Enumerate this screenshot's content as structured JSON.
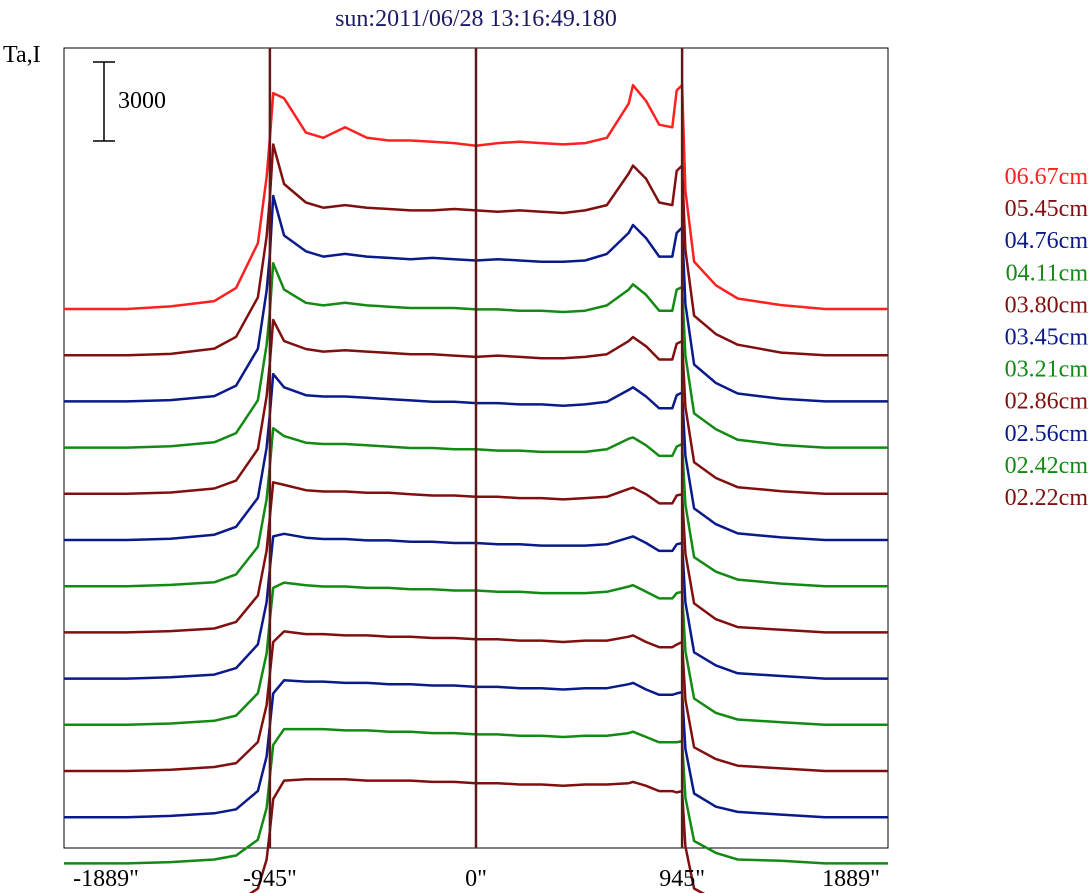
{
  "chart_data": {
    "type": "line",
    "title": "sun:2011/06/28 13:16:49.180",
    "ylabel": "Ta,I",
    "scale_bar_label": "3000",
    "x_tick_labels": [
      "-1889\"",
      "-945\"",
      "0\"",
      "945\"",
      "1889\""
    ],
    "x_ticks": [
      -1889,
      -945,
      0,
      945,
      1889
    ],
    "xlim": [
      -1889,
      1889
    ],
    "vertical_lines_at": [
      -945,
      0,
      945
    ],
    "grid": false,
    "legend_placement": "right",
    "x": [
      -1889,
      -1600,
      -1400,
      -1200,
      -1100,
      -1000,
      -960,
      -945,
      -930,
      -880,
      -780,
      -700,
      -600,
      -500,
      -400,
      -300,
      -200,
      -100,
      0,
      100,
      200,
      300,
      400,
      500,
      600,
      700,
      720,
      780,
      840,
      900,
      920,
      945,
      960,
      1000,
      1100,
      1200,
      1400,
      1600,
      1889
    ],
    "series": [
      {
        "name": "06.67cm",
        "color": "#ff2020",
        "label_order": 1,
        "values": [
          0,
          0,
          100,
          300,
          800,
          2500,
          5000,
          6500,
          8200,
          8000,
          6700,
          6500,
          6900,
          6500,
          6400,
          6400,
          6350,
          6300,
          6200,
          6300,
          6350,
          6300,
          6250,
          6300,
          6500,
          7800,
          8500,
          7900,
          7000,
          6900,
          8300,
          8500,
          4500,
          1800,
          900,
          400,
          150,
          0,
          0
        ]
      },
      {
        "name": "05.45cm",
        "color": "#801010",
        "label_order": 2,
        "values": [
          0,
          0,
          50,
          250,
          700,
          2200,
          4500,
          6000,
          8000,
          6500,
          5800,
          5600,
          5700,
          5600,
          5550,
          5500,
          5500,
          5550,
          5500,
          5450,
          5500,
          5450,
          5400,
          5500,
          5700,
          6900,
          7200,
          6700,
          5800,
          5700,
          7000,
          7200,
          4000,
          1500,
          800,
          400,
          100,
          0,
          0
        ]
      },
      {
        "name": "04.76cm",
        "color": "#0a1a8a",
        "label_order": 3,
        "values": [
          0,
          0,
          50,
          200,
          600,
          2000,
          4200,
          5600,
          7800,
          6300,
          5700,
          5500,
          5600,
          5500,
          5450,
          5400,
          5450,
          5400,
          5350,
          5400,
          5350,
          5300,
          5300,
          5350,
          5600,
          6400,
          6700,
          6200,
          5500,
          5500,
          6400,
          6600,
          3700,
          1400,
          700,
          300,
          100,
          0,
          0
        ]
      },
      {
        "name": "04.11cm",
        "color": "#138a13",
        "label_order": 4,
        "values": [
          0,
          0,
          50,
          200,
          550,
          1800,
          3900,
          5200,
          7000,
          6000,
          5500,
          5400,
          5500,
          5400,
          5350,
          5300,
          5300,
          5300,
          5250,
          5250,
          5200,
          5200,
          5150,
          5200,
          5400,
          6000,
          6200,
          5800,
          5200,
          5200,
          6000,
          6100,
          3500,
          1300,
          700,
          300,
          100,
          0,
          0
        ]
      },
      {
        "name": "03.80cm",
        "color": "#801010",
        "label_order": 5,
        "values": [
          0,
          0,
          50,
          200,
          500,
          1700,
          3700,
          5000,
          6600,
          5800,
          5500,
          5400,
          5450,
          5400,
          5350,
          5300,
          5300,
          5250,
          5200,
          5250,
          5200,
          5150,
          5150,
          5200,
          5300,
          5800,
          5950,
          5600,
          5100,
          5100,
          5700,
          5800,
          3300,
          1200,
          600,
          250,
          100,
          0,
          0
        ]
      },
      {
        "name": "03.45cm",
        "color": "#0a1a8a",
        "label_order": 6,
        "values": [
          0,
          0,
          50,
          200,
          500,
          1600,
          3500,
          4800,
          6300,
          5800,
          5500,
          5450,
          5450,
          5400,
          5350,
          5300,
          5250,
          5250,
          5200,
          5200,
          5150,
          5150,
          5100,
          5150,
          5250,
          5700,
          5800,
          5450,
          5000,
          5000,
          5500,
          5600,
          3200,
          1200,
          600,
          250,
          100,
          0,
          0
        ]
      },
      {
        "name": "03.21cm",
        "color": "#138a13",
        "label_order": 7,
        "values": [
          0,
          0,
          50,
          150,
          450,
          1500,
          3300,
          4600,
          6000,
          5700,
          5450,
          5400,
          5400,
          5350,
          5300,
          5250,
          5250,
          5200,
          5200,
          5150,
          5150,
          5100,
          5100,
          5100,
          5200,
          5600,
          5650,
          5350,
          4950,
          4950,
          5300,
          5400,
          3100,
          1100,
          550,
          250,
          100,
          0,
          0
        ]
      },
      {
        "name": "02.86cm",
        "color": "#801010",
        "label_order": 8,
        "values": [
          0,
          0,
          50,
          150,
          400,
          1400,
          3100,
          4400,
          5700,
          5600,
          5400,
          5350,
          5350,
          5300,
          5300,
          5250,
          5200,
          5200,
          5150,
          5150,
          5100,
          5100,
          5050,
          5100,
          5150,
          5450,
          5500,
          5250,
          4900,
          4900,
          5200,
          5250,
          3000,
          1100,
          500,
          200,
          100,
          0,
          0
        ]
      },
      {
        "name": "02.56cm",
        "color": "#0a1a8a",
        "label_order": 9,
        "values": [
          0,
          0,
          50,
          150,
          400,
          1300,
          2900,
          4200,
          5400,
          5500,
          5350,
          5300,
          5300,
          5250,
          5250,
          5200,
          5200,
          5150,
          5150,
          5100,
          5100,
          5050,
          5050,
          5050,
          5100,
          5350,
          5400,
          5150,
          4850,
          4850,
          5100,
          5150,
          2900,
          1000,
          500,
          200,
          100,
          0,
          0
        ]
      },
      {
        "name": "02.42cm",
        "color": "#138a13",
        "label_order": 10,
        "values": [
          0,
          0,
          50,
          150,
          350,
          1200,
          2700,
          4000,
          5200,
          5400,
          5300,
          5250,
          5250,
          5200,
          5200,
          5150,
          5150,
          5100,
          5100,
          5050,
          5050,
          5000,
          5000,
          5000,
          5050,
          5250,
          5300,
          5050,
          4800,
          4800,
          5000,
          5050,
          2800,
          1000,
          450,
          200,
          100,
          0,
          0
        ]
      },
      {
        "name": "02.22cm",
        "color": "#801010",
        "label_order": 11,
        "values": [
          0,
          0,
          50,
          150,
          300,
          1100,
          2500,
          3700,
          4900,
          5300,
          5200,
          5200,
          5150,
          5150,
          5100,
          5100,
          5050,
          5050,
          5000,
          5000,
          4950,
          4950,
          4900,
          4950,
          4950,
          5100,
          5150,
          4900,
          4700,
          4700,
          4800,
          4900,
          2700,
          900,
          450,
          200,
          100,
          0,
          0
        ]
      }
    ],
    "extra_traces": [
      {
        "color": "#0a1a8a",
        "values": [
          0,
          0,
          50,
          150,
          300,
          1000,
          2300,
          3500,
          4700,
          5200,
          5150,
          5150,
          5100,
          5100,
          5050,
          5050,
          5000,
          5000,
          4950,
          4950,
          4900,
          4900,
          4850,
          4900,
          4900,
          5050,
          5100,
          4850,
          4650,
          4650,
          4700,
          4750,
          2600,
          900,
          400,
          200,
          100,
          0,
          0
        ]
      },
      {
        "color": "#138a13",
        "values": [
          0,
          0,
          50,
          150,
          300,
          900,
          2100,
          3300,
          4500,
          5100,
          5100,
          5100,
          5050,
          5050,
          5000,
          5000,
          4950,
          4950,
          4900,
          4900,
          4850,
          4850,
          4800,
          4850,
          4850,
          4950,
          5000,
          4800,
          4600,
          4600,
          4600,
          4650,
          2500,
          850,
          400,
          150,
          100,
          0,
          0
        ]
      },
      {
        "color": "#801010",
        "values": [
          0,
          0,
          50,
          100,
          250,
          800,
          1900,
          3000,
          4200,
          4900,
          4950,
          4950,
          4950,
          4900,
          4900,
          4900,
          4850,
          4850,
          4800,
          4800,
          4750,
          4750,
          4700,
          4750,
          4750,
          4800,
          4850,
          4700,
          4500,
          4500,
          4450,
          4500,
          2400,
          800,
          350,
          150,
          50,
          0,
          0
        ]
      }
    ]
  }
}
